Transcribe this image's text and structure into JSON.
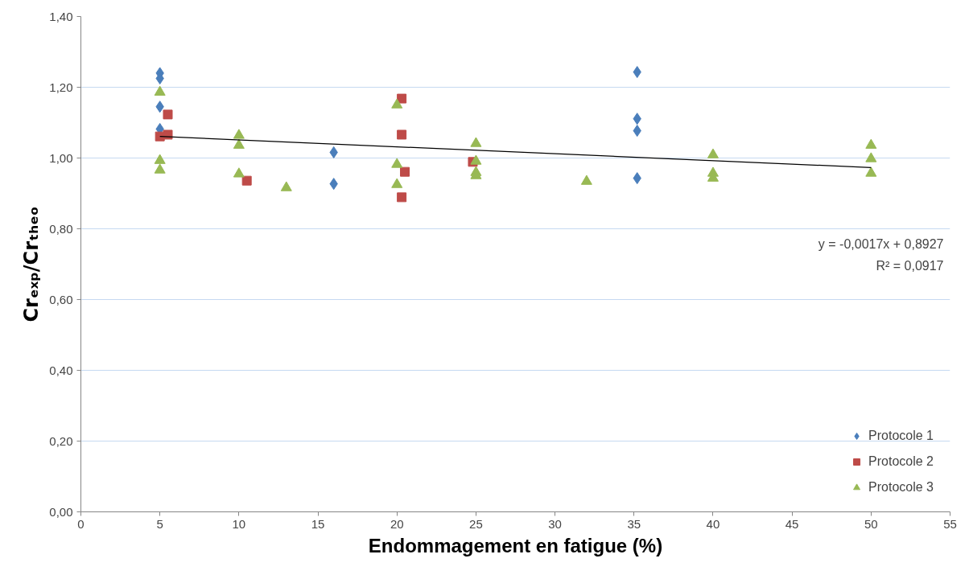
{
  "chart_data": {
    "type": "scatter",
    "xlabel": "Endommagement en fatigue (%)",
    "ylabel": "Crₑₓₚ/Crₜₕₑₒ",
    "xlim": [
      0,
      55
    ],
    "xticks": [
      0,
      5,
      10,
      15,
      20,
      25,
      30,
      35,
      40,
      45,
      50,
      55
    ],
    "ylim": [
      0,
      1.4
    ],
    "yticks": [
      {
        "value": 0,
        "label": "0,00"
      },
      {
        "value": 0.2,
        "label": "0,20"
      },
      {
        "value": 0.4,
        "label": "0,40"
      },
      {
        "value": 0.6,
        "label": "0,60"
      },
      {
        "value": 0.8,
        "label": "0,80"
      },
      {
        "value": 1.0,
        "label": "1,00"
      },
      {
        "value": 1.2,
        "label": "1,20"
      },
      {
        "value": 1.4,
        "label": "1,40"
      }
    ],
    "grid": "y",
    "legend": "bottom right",
    "series": [
      {
        "name": "Protocole 1",
        "color": "#4a7ebb",
        "marker": "diamond",
        "x": [
          5,
          5,
          5,
          5,
          16,
          16,
          35.2,
          35.2,
          35.2,
          35.2
        ],
        "values": [
          1.24,
          1.225,
          1.145,
          1.082,
          1.016,
          0.927,
          1.243,
          1.111,
          1.077,
          0.943
        ]
      },
      {
        "name": "Protocole 2",
        "color": "#be4b48",
        "marker": "square",
        "x": [
          5,
          5.5,
          5.5,
          10.5,
          20.3,
          20.3,
          20.5,
          20.3,
          24.8
        ],
        "values": [
          1.061,
          1.123,
          1.066,
          0.936,
          1.168,
          1.066,
          0.961,
          0.889,
          0.989
        ]
      },
      {
        "name": "Protocole 3",
        "color": "#98b954",
        "marker": "triangle",
        "x": [
          5,
          5,
          5,
          10,
          10,
          10,
          13,
          20,
          20,
          20,
          25,
          25,
          25,
          25,
          32,
          40,
          40,
          40,
          50,
          50,
          50
        ],
        "values": [
          1.186,
          0.993,
          0.966,
          1.064,
          1.036,
          0.955,
          0.916,
          1.15,
          0.982,
          0.925,
          1.041,
          0.991,
          0.959,
          0.95,
          0.934,
          1.009,
          0.957,
          0.943,
          1.036,
          0.998,
          0.957
        ]
      },
      {
        "type": "line",
        "color": "#000000",
        "x": [
          5,
          50
        ],
        "values": [
          1.061,
          0.973
        ]
      }
    ],
    "annotations": [
      "y = -0,0017x + 0,8927",
      "R² = 0,0917"
    ]
  }
}
